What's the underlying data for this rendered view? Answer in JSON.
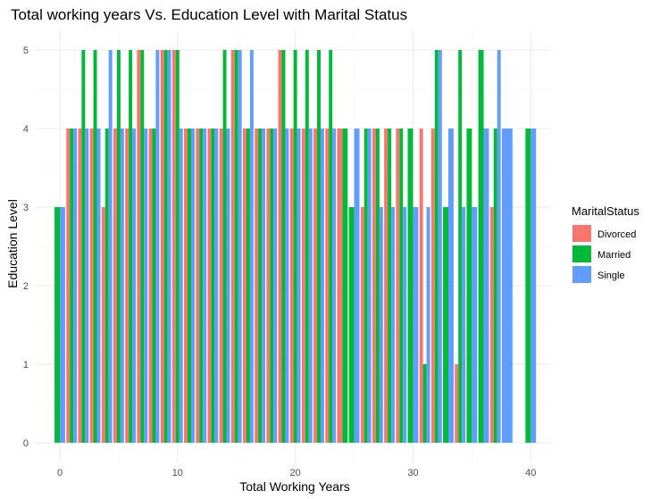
{
  "chart_data": {
    "type": "bar",
    "title": "Total working years Vs. Education Level with Marital Status",
    "xlabel": "Total Working Years",
    "ylabel": "Education Level",
    "xlim": [
      -2.2,
      41.8
    ],
    "ylim": [
      -0.25,
      5.25
    ],
    "x_ticks": [
      0,
      10,
      20,
      30,
      40
    ],
    "y_ticks": [
      0,
      1,
      2,
      3,
      4,
      5
    ],
    "grid": true,
    "legend": {
      "title": "MaritalStatus",
      "position": "right"
    },
    "series": [
      {
        "name": "Divorced",
        "color": "#F8766D",
        "points": [
          [
            1,
            4
          ],
          [
            2,
            4
          ],
          [
            3,
            4
          ],
          [
            4,
            3
          ],
          [
            5,
            4
          ],
          [
            6,
            4
          ],
          [
            7,
            5
          ],
          [
            8,
            4
          ],
          [
            9,
            5
          ],
          [
            10,
            5
          ],
          [
            11,
            4
          ],
          [
            12,
            4
          ],
          [
            13,
            4
          ],
          [
            14,
            4
          ],
          [
            15,
            5
          ],
          [
            16,
            4
          ],
          [
            17,
            4
          ],
          [
            18,
            4
          ],
          [
            19,
            5
          ],
          [
            20,
            4
          ],
          [
            21,
            4
          ],
          [
            22,
            4
          ],
          [
            23,
            4
          ],
          [
            24,
            4
          ],
          [
            26,
            3
          ],
          [
            27,
            4
          ],
          [
            28,
            4
          ],
          [
            29,
            4
          ],
          [
            31,
            4
          ],
          [
            32,
            4
          ],
          [
            34,
            1
          ],
          [
            37,
            3
          ]
        ]
      },
      {
        "name": "Married",
        "color": "#00BA38",
        "points": [
          [
            0,
            3
          ],
          [
            1,
            4
          ],
          [
            2,
            5
          ],
          [
            3,
            5
          ],
          [
            4,
            4
          ],
          [
            5,
            5
          ],
          [
            6,
            5
          ],
          [
            7,
            5
          ],
          [
            8,
            4
          ],
          [
            9,
            5
          ],
          [
            10,
            5
          ],
          [
            11,
            4
          ],
          [
            12,
            4
          ],
          [
            13,
            4
          ],
          [
            14,
            5
          ],
          [
            15,
            5
          ],
          [
            16,
            4
          ],
          [
            17,
            4
          ],
          [
            18,
            4
          ],
          [
            19,
            5
          ],
          [
            20,
            5
          ],
          [
            21,
            5
          ],
          [
            22,
            5
          ],
          [
            23,
            5
          ],
          [
            24,
            4
          ],
          [
            25,
            3
          ],
          [
            26,
            4
          ],
          [
            27,
            4
          ],
          [
            28,
            4
          ],
          [
            29,
            4
          ],
          [
            30,
            4
          ],
          [
            31,
            1
          ],
          [
            32,
            5
          ],
          [
            33,
            3
          ],
          [
            34,
            5
          ],
          [
            35,
            4
          ],
          [
            36,
            5
          ],
          [
            37,
            4
          ],
          [
            40,
            4
          ]
        ]
      },
      {
        "name": "Single",
        "color": "#619CFF",
        "points": [
          [
            0,
            3
          ],
          [
            1,
            4
          ],
          [
            2,
            4
          ],
          [
            3,
            4
          ],
          [
            4,
            5
          ],
          [
            5,
            4
          ],
          [
            6,
            4
          ],
          [
            7,
            4
          ],
          [
            8,
            5
          ],
          [
            9,
            5
          ],
          [
            10,
            4
          ],
          [
            11,
            4
          ],
          [
            12,
            4
          ],
          [
            13,
            4
          ],
          [
            14,
            4
          ],
          [
            15,
            5
          ],
          [
            16,
            5
          ],
          [
            17,
            4
          ],
          [
            18,
            4
          ],
          [
            19,
            4
          ],
          [
            20,
            4
          ],
          [
            21,
            4
          ],
          [
            22,
            4
          ],
          [
            23,
            4
          ],
          [
            25,
            4
          ],
          [
            26,
            4
          ],
          [
            27,
            3
          ],
          [
            28,
            3
          ],
          [
            29,
            3
          ],
          [
            30,
            3
          ],
          [
            31,
            3
          ],
          [
            32,
            5
          ],
          [
            33,
            4
          ],
          [
            34,
            3
          ],
          [
            35,
            3
          ],
          [
            36,
            4
          ],
          [
            37,
            5
          ],
          [
            38,
            4
          ],
          [
            40,
            4
          ]
        ]
      }
    ]
  }
}
